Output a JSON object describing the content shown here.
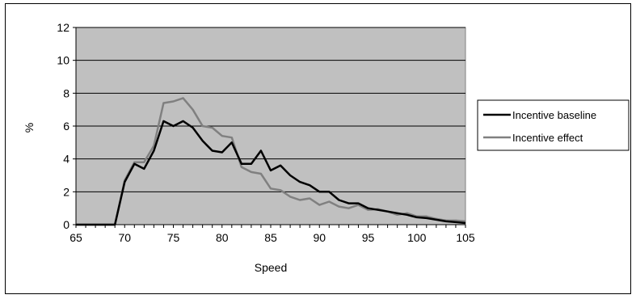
{
  "chart_data": {
    "type": "line",
    "title": "",
    "xlabel": "Speed",
    "ylabel": "%",
    "xlim": [
      65,
      105
    ],
    "ylim": [
      0,
      12
    ],
    "xticks": [
      65,
      70,
      75,
      80,
      85,
      90,
      95,
      100,
      105
    ],
    "yticks": [
      0,
      2,
      4,
      6,
      8,
      10,
      12
    ],
    "grid": "horizontal",
    "plot_background": "#c0c0c0",
    "legend_position": "right",
    "series": [
      {
        "name": "Incentive baseline",
        "color": "#000000",
        "x": [
          65,
          66,
          67,
          68,
          69,
          70,
          71,
          72,
          73,
          74,
          75,
          76,
          77,
          78,
          79,
          80,
          81,
          82,
          83,
          84,
          85,
          86,
          87,
          88,
          89,
          90,
          91,
          92,
          93,
          94,
          95,
          96,
          97,
          98,
          99,
          100,
          101,
          102,
          103,
          104,
          105
        ],
        "y": [
          0,
          0,
          0,
          0,
          0,
          2.6,
          3.7,
          3.4,
          4.5,
          6.3,
          6.0,
          6.3,
          5.9,
          5.1,
          4.5,
          4.4,
          5.0,
          3.7,
          3.7,
          4.5,
          3.3,
          3.6,
          3.0,
          2.6,
          2.4,
          2.0,
          2.0,
          1.5,
          1.3,
          1.3,
          1.0,
          0.9,
          0.8,
          0.7,
          0.6,
          0.45,
          0.4,
          0.3,
          0.2,
          0.15,
          0.1
        ]
      },
      {
        "name": "Incentive effect",
        "color": "#808080",
        "x": [
          65,
          66,
          67,
          68,
          69,
          70,
          71,
          72,
          73,
          74,
          75,
          76,
          77,
          78,
          79,
          80,
          81,
          82,
          83,
          84,
          85,
          86,
          87,
          88,
          89,
          90,
          91,
          92,
          93,
          94,
          95,
          96,
          97,
          98,
          99,
          100,
          101,
          102,
          103,
          104,
          105
        ],
        "y": [
          0,
          0,
          0,
          0,
          0,
          2.7,
          3.8,
          3.8,
          4.8,
          7.4,
          7.5,
          7.7,
          7.0,
          6.0,
          5.9,
          5.4,
          5.3,
          3.5,
          3.2,
          3.1,
          2.2,
          2.1,
          1.7,
          1.5,
          1.6,
          1.2,
          1.4,
          1.1,
          1.0,
          1.2,
          0.9,
          0.95,
          0.8,
          0.6,
          0.7,
          0.5,
          0.5,
          0.35,
          0.25,
          0.25,
          0.2
        ]
      }
    ]
  }
}
